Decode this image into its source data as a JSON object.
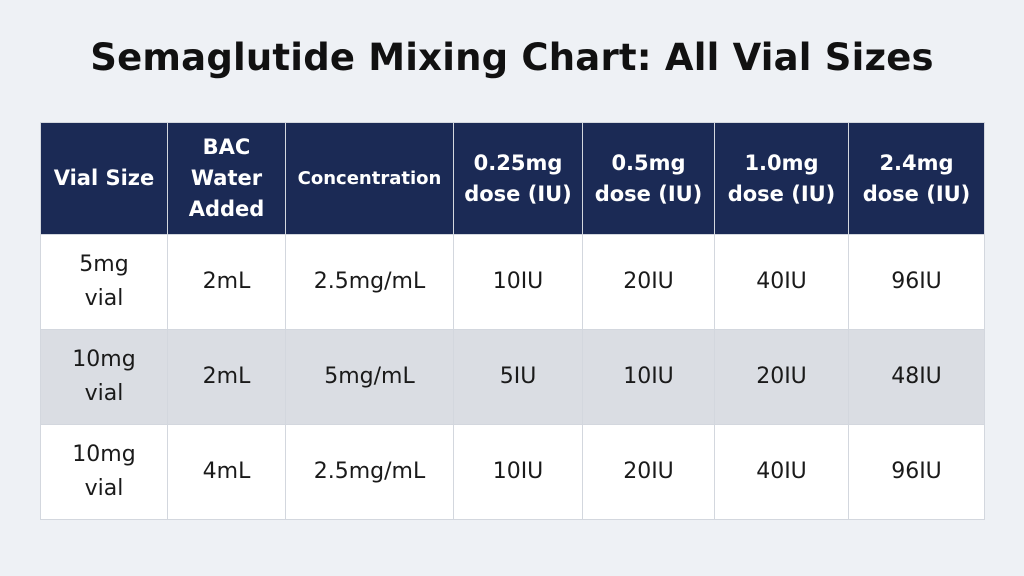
{
  "title": "Semaglutide Mixing Chart: All Vial Sizes",
  "table": {
    "headers": [
      {
        "lines": [
          "Vial Size"
        ]
      },
      {
        "lines": [
          "BAC",
          "Water",
          "Added"
        ]
      },
      {
        "lines": [
          "Concentration"
        ]
      },
      {
        "lines": [
          "0.25mg",
          "dose (IU)"
        ]
      },
      {
        "lines": [
          "0.5mg",
          "dose (IU)"
        ]
      },
      {
        "lines": [
          "1.0mg",
          "dose (IU)"
        ]
      },
      {
        "lines": [
          "2.4mg",
          "dose (IU)"
        ]
      }
    ],
    "rows": [
      {
        "vial": [
          "5mg",
          "vial"
        ],
        "bac": "2mL",
        "concentration": "2.5mg/mL",
        "d025": "10IU",
        "d05": "20IU",
        "d10": "40IU",
        "d24": "96IU"
      },
      {
        "vial": [
          "10mg",
          "vial"
        ],
        "bac": "2mL",
        "concentration": "5mg/mL",
        "d025": "5IU",
        "d05": "10IU",
        "d10": "20IU",
        "d24": "48IU"
      },
      {
        "vial": [
          "10mg",
          "vial"
        ],
        "bac": "4mL",
        "concentration": "2.5mg/mL",
        "d025": "10IU",
        "d05": "20IU",
        "d10": "40IU",
        "d24": "96IU"
      }
    ]
  },
  "colors": {
    "header_bg": "#1b2a55",
    "header_text": "#ffffff",
    "row_alt_bg": "#dadde3",
    "page_bg": "#eef1f5"
  }
}
